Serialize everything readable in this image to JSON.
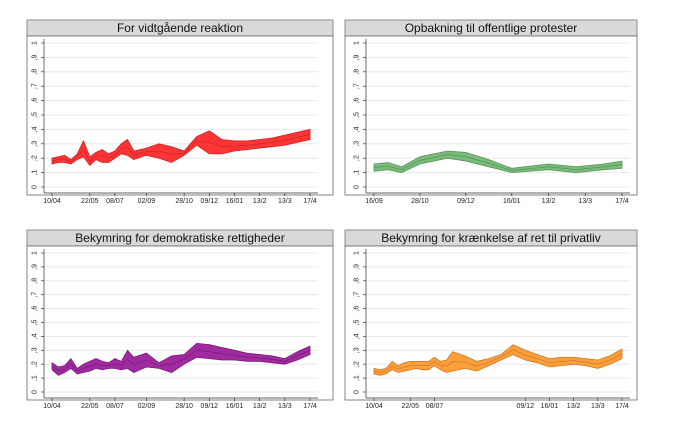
{
  "chart_data": [
    {
      "type": "area",
      "title": "For vidtgående reaktion",
      "ylim": [
        0,
        1
      ],
      "yticks": [
        "0",
        ",1",
        ",2",
        ",3",
        ",4",
        ",5",
        ",6",
        ",7",
        ",8",
        ",9",
        "1"
      ],
      "grid": true,
      "color": "#ff2a2a",
      "xtick_labels": [
        "10/04",
        "22/05",
        "08/07",
        "02/09",
        "28/10",
        "09/12",
        "16/01",
        "13/2",
        "13/3",
        "17/4"
      ],
      "xtick_positions": [
        0,
        6,
        10,
        15,
        21,
        25,
        29,
        33,
        37,
        41
      ],
      "x_max": 41,
      "series": [
        {
          "x": [
            0,
            1,
            2,
            3,
            4,
            5,
            6,
            7,
            8,
            9,
            10,
            11,
            12,
            13,
            15,
            17,
            19,
            21,
            23,
            25,
            27,
            29,
            31,
            33,
            35,
            37,
            39,
            41
          ],
          "lower": [
            0.16,
            0.17,
            0.17,
            0.16,
            0.19,
            0.21,
            0.15,
            0.19,
            0.17,
            0.17,
            0.2,
            0.23,
            0.22,
            0.19,
            0.22,
            0.2,
            0.17,
            0.22,
            0.29,
            0.23,
            0.23,
            0.25,
            0.26,
            0.27,
            0.28,
            0.29,
            0.31,
            0.33
          ],
          "upper": [
            0.2,
            0.21,
            0.22,
            0.19,
            0.23,
            0.32,
            0.21,
            0.24,
            0.26,
            0.23,
            0.25,
            0.3,
            0.33,
            0.25,
            0.27,
            0.3,
            0.28,
            0.25,
            0.35,
            0.39,
            0.33,
            0.32,
            0.32,
            0.33,
            0.34,
            0.36,
            0.38,
            0.4
          ]
        }
      ]
    },
    {
      "type": "area",
      "title": "Opbakning til offentlige protester",
      "ylim": [
        0,
        1
      ],
      "yticks": [
        "0",
        ",1",
        ",2",
        ",3",
        ",4",
        ",5",
        ",6",
        ",7",
        ",8",
        ",9",
        "1"
      ],
      "grid": true,
      "color": "#72b872",
      "xtick_labels": [
        "16/09",
        "28/10",
        "09/12",
        "16/01",
        "13/2",
        "13/3",
        "17/4"
      ],
      "xtick_positions": [
        0,
        5,
        10,
        15,
        19,
        23,
        27
      ],
      "x_max": 27,
      "series": [
        {
          "x": [
            0,
            1.5,
            3,
            5,
            8,
            10,
            12.5,
            15,
            19,
            22,
            25,
            27
          ],
          "lower": [
            0.11,
            0.12,
            0.1,
            0.16,
            0.2,
            0.18,
            0.14,
            0.1,
            0.12,
            0.1,
            0.12,
            0.13
          ],
          "upper": [
            0.16,
            0.17,
            0.14,
            0.21,
            0.25,
            0.24,
            0.19,
            0.13,
            0.16,
            0.14,
            0.16,
            0.18
          ]
        }
      ]
    },
    {
      "type": "area",
      "title": "Bekymring for demokratiske rettigheder",
      "ylim": [
        0,
        1
      ],
      "yticks": [
        "0",
        ",1",
        ",2",
        ",3",
        ",4",
        ",5",
        ",6",
        ",7",
        ",8",
        ",9",
        "1"
      ],
      "grid": true,
      "color": "#9b1f9b",
      "xtick_labels": [
        "10/04",
        "22/05",
        "08/07",
        "02/09",
        "28/10",
        "09/12",
        "16/01",
        "13/2",
        "13/3",
        "17/4"
      ],
      "xtick_positions": [
        0,
        6,
        10,
        15,
        21,
        25,
        29,
        33,
        37,
        41
      ],
      "x_max": 41,
      "series": [
        {
          "x": [
            0,
            1,
            2,
            3,
            4,
            5,
            6,
            7,
            8,
            9,
            10,
            11,
            12,
            13,
            15,
            17,
            19,
            21,
            23,
            25,
            27,
            29,
            31,
            33,
            35,
            37,
            39,
            41
          ],
          "lower": [
            0.16,
            0.12,
            0.14,
            0.17,
            0.13,
            0.14,
            0.15,
            0.17,
            0.16,
            0.17,
            0.17,
            0.16,
            0.17,
            0.14,
            0.18,
            0.17,
            0.14,
            0.2,
            0.25,
            0.24,
            0.23,
            0.23,
            0.22,
            0.22,
            0.21,
            0.2,
            0.23,
            0.27
          ],
          "upper": [
            0.21,
            0.18,
            0.19,
            0.24,
            0.17,
            0.2,
            0.22,
            0.24,
            0.22,
            0.21,
            0.24,
            0.22,
            0.3,
            0.25,
            0.28,
            0.21,
            0.26,
            0.27,
            0.35,
            0.34,
            0.32,
            0.3,
            0.28,
            0.27,
            0.26,
            0.24,
            0.29,
            0.33
          ]
        }
      ]
    },
    {
      "type": "area",
      "title": "Bekymring for krænkelse af ret til privatliv",
      "ylim": [
        0,
        1
      ],
      "yticks": [
        "0",
        ",1",
        ",2",
        ",3",
        ",4",
        ",5",
        ",6",
        ",7",
        ",8",
        ",9",
        "1"
      ],
      "grid": true,
      "color": "#ff9a30",
      "xtick_labels": [
        "10/04",
        "22/05",
        "08/07",
        "09/12",
        "16/01",
        "13/2",
        "13/3",
        "17/4"
      ],
      "xtick_positions": [
        0,
        6,
        10,
        25,
        29,
        33,
        37,
        41
      ],
      "x_max": 41,
      "series": [
        {
          "x": [
            0,
            1,
            2,
            3,
            4,
            5,
            6,
            7,
            8,
            9,
            10,
            11,
            12,
            13,
            15,
            17,
            19,
            21,
            23,
            25,
            27,
            29,
            31,
            33,
            35,
            37,
            39,
            41
          ],
          "lower": [
            0.13,
            0.12,
            0.13,
            0.16,
            0.14,
            0.15,
            0.16,
            0.17,
            0.16,
            0.16,
            0.19,
            0.16,
            0.14,
            0.15,
            0.17,
            0.15,
            0.19,
            0.23,
            0.27,
            0.23,
            0.21,
            0.18,
            0.19,
            0.2,
            0.19,
            0.17,
            0.2,
            0.24
          ],
          "upper": [
            0.17,
            0.16,
            0.17,
            0.22,
            0.19,
            0.21,
            0.22,
            0.22,
            0.22,
            0.22,
            0.25,
            0.22,
            0.23,
            0.29,
            0.26,
            0.22,
            0.24,
            0.27,
            0.34,
            0.3,
            0.27,
            0.24,
            0.25,
            0.25,
            0.24,
            0.23,
            0.26,
            0.31
          ]
        }
      ]
    }
  ]
}
